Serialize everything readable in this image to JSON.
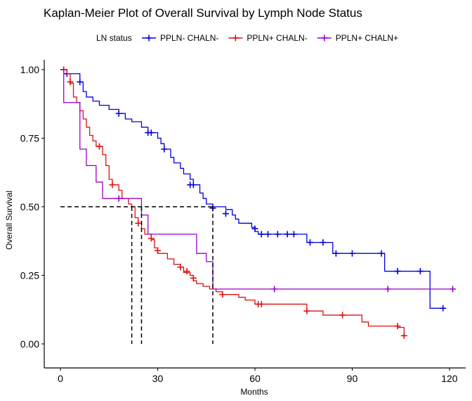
{
  "chart_data": {
    "type": "line",
    "subtype": "kaplan-meier step",
    "title": "Kaplan-Meier Plot of Overall Survival by Lymph Node Status",
    "xlabel": "Months",
    "ylabel": "Overall Survival",
    "xlim": [
      -5,
      125
    ],
    "ylim": [
      -0.0875,
      1.0357
    ],
    "x_ticks": [
      0,
      30,
      60,
      90,
      120
    ],
    "x_tick_labels": [
      "0",
      "30",
      "60",
      "90",
      "120"
    ],
    "y_ticks": [
      0,
      0.25,
      0.5,
      0.75,
      1.0
    ],
    "y_tick_labels": [
      "0.00",
      "0.25",
      "0.50",
      "0.75",
      "1.00"
    ],
    "legend": {
      "title": "LN status",
      "position": "top",
      "entries": [
        "PPLN- CHALN-",
        "PPLN+ CHALN-",
        "PPLN+ CHALN+"
      ]
    },
    "series": [
      {
        "name": "PPLN- CHALN-",
        "color": "#0000dd",
        "steps": [
          [
            0,
            1.0
          ],
          [
            2,
            0.985
          ],
          [
            6,
            0.955
          ],
          [
            7,
            0.92
          ],
          [
            8,
            0.9
          ],
          [
            10,
            0.885
          ],
          [
            12,
            0.87
          ],
          [
            15,
            0.855
          ],
          [
            18,
            0.84
          ],
          [
            20,
            0.82
          ],
          [
            22,
            0.81
          ],
          [
            25,
            0.79
          ],
          [
            27,
            0.77
          ],
          [
            30,
            0.75
          ],
          [
            31,
            0.73
          ],
          [
            32,
            0.71
          ],
          [
            34,
            0.68
          ],
          [
            35,
            0.66
          ],
          [
            37,
            0.64
          ],
          [
            38,
            0.62
          ],
          [
            40,
            0.6
          ],
          [
            41,
            0.58
          ],
          [
            43,
            0.55
          ],
          [
            44,
            0.53
          ],
          [
            45,
            0.51
          ],
          [
            47,
            0.5
          ],
          [
            51,
            0.49
          ],
          [
            53,
            0.47
          ],
          [
            54,
            0.455
          ],
          [
            55,
            0.44
          ],
          [
            59,
            0.425
          ],
          [
            60,
            0.41
          ],
          [
            61,
            0.4
          ],
          [
            76,
            0.37
          ],
          [
            84,
            0.33
          ],
          [
            100,
            0.265
          ],
          [
            114,
            0.13
          ],
          [
            118,
            0.13
          ]
        ],
        "censored": [
          [
            2,
            0.985
          ],
          [
            6,
            0.955
          ],
          [
            18,
            0.84
          ],
          [
            27,
            0.77
          ],
          [
            28,
            0.77
          ],
          [
            32,
            0.71
          ],
          [
            40,
            0.58
          ],
          [
            41,
            0.58
          ],
          [
            47,
            0.495
          ],
          [
            51,
            0.475
          ],
          [
            60,
            0.42
          ],
          [
            62,
            0.4
          ],
          [
            64,
            0.4
          ],
          [
            67,
            0.4
          ],
          [
            70,
            0.4
          ],
          [
            72,
            0.4
          ],
          [
            77,
            0.37
          ],
          [
            81,
            0.37
          ],
          [
            85,
            0.33
          ],
          [
            90,
            0.33
          ],
          [
            99,
            0.33
          ],
          [
            104,
            0.265
          ],
          [
            111,
            0.265
          ],
          [
            118,
            0.13
          ]
        ]
      },
      {
        "name": "PPLN+ CHALN-",
        "color": "#dd1111",
        "steps": [
          [
            0,
            1.0
          ],
          [
            2,
            0.985
          ],
          [
            3,
            0.95
          ],
          [
            4,
            0.9
          ],
          [
            5,
            0.88
          ],
          [
            6,
            0.85
          ],
          [
            7,
            0.82
          ],
          [
            8,
            0.79
          ],
          [
            9,
            0.76
          ],
          [
            10,
            0.74
          ],
          [
            11,
            0.72
          ],
          [
            13,
            0.69
          ],
          [
            14,
            0.65
          ],
          [
            15,
            0.6
          ],
          [
            16,
            0.58
          ],
          [
            18,
            0.56
          ],
          [
            19,
            0.53
          ],
          [
            21,
            0.51
          ],
          [
            22,
            0.5
          ],
          [
            23,
            0.46
          ],
          [
            24,
            0.44
          ],
          [
            25,
            0.42
          ],
          [
            26,
            0.4
          ],
          [
            28,
            0.38
          ],
          [
            29,
            0.35
          ],
          [
            30,
            0.33
          ],
          [
            33,
            0.31
          ],
          [
            35,
            0.29
          ],
          [
            37,
            0.28
          ],
          [
            38,
            0.26
          ],
          [
            40,
            0.25
          ],
          [
            41,
            0.23
          ],
          [
            42,
            0.22
          ],
          [
            44,
            0.21
          ],
          [
            46,
            0.2
          ],
          [
            48,
            0.19
          ],
          [
            50,
            0.18
          ],
          [
            55,
            0.17
          ],
          [
            57,
            0.16
          ],
          [
            60,
            0.145
          ],
          [
            76,
            0.12
          ],
          [
            81,
            0.105
          ],
          [
            93,
            0.08
          ],
          [
            95,
            0.065
          ],
          [
            104,
            0.06
          ],
          [
            106,
            0.03
          ]
        ],
        "censored": [
          [
            1,
            1.0
          ],
          [
            3,
            0.955
          ],
          [
            12,
            0.72
          ],
          [
            16,
            0.58
          ],
          [
            24,
            0.44
          ],
          [
            28,
            0.385
          ],
          [
            30,
            0.34
          ],
          [
            37,
            0.28
          ],
          [
            39,
            0.265
          ],
          [
            41,
            0.24
          ],
          [
            50,
            0.18
          ],
          [
            61,
            0.145
          ],
          [
            62,
            0.145
          ],
          [
            76,
            0.12
          ],
          [
            87,
            0.105
          ],
          [
            104,
            0.065
          ],
          [
            106,
            0.03
          ]
        ]
      },
      {
        "name": "PPLN+ CHALN+",
        "color": "#9900cc",
        "steps": [
          [
            0,
            1.0
          ],
          [
            1,
            0.94
          ],
          [
            1,
            0.88
          ],
          [
            6,
            0.82
          ],
          [
            6,
            0.71
          ],
          [
            8,
            0.65
          ],
          [
            11,
            0.59
          ],
          [
            13,
            0.53
          ],
          [
            25,
            0.47
          ],
          [
            27,
            0.4
          ],
          [
            42,
            0.33
          ],
          [
            45,
            0.3
          ],
          [
            47,
            0.2
          ],
          [
            121,
            0.2
          ]
        ],
        "censored": [
          [
            18,
            0.53
          ],
          [
            66,
            0.2
          ],
          [
            101,
            0.2
          ],
          [
            121,
            0.2
          ]
        ]
      }
    ],
    "median_lines": [
      {
        "x": 22,
        "y": 0.5
      },
      {
        "x": 25,
        "y": 0.5
      },
      {
        "x": 47,
        "y": 0.5
      }
    ]
  }
}
